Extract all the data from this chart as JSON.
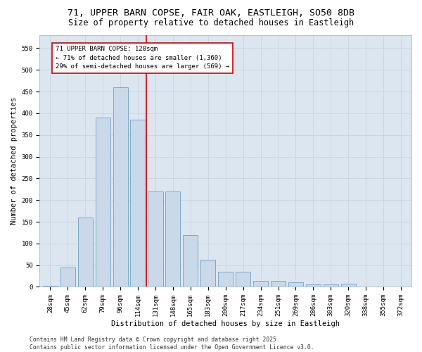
{
  "title_line1": "71, UPPER BARN COPSE, FAIR OAK, EASTLEIGH, SO50 8DB",
  "title_line2": "Size of property relative to detached houses in Eastleigh",
  "xlabel": "Distribution of detached houses by size in Eastleigh",
  "ylabel": "Number of detached properties",
  "categories": [
    "28sqm",
    "45sqm",
    "62sqm",
    "79sqm",
    "96sqm",
    "114sqm",
    "131sqm",
    "148sqm",
    "165sqm",
    "183sqm",
    "200sqm",
    "217sqm",
    "234sqm",
    "251sqm",
    "269sqm",
    "286sqm",
    "303sqm",
    "320sqm",
    "338sqm",
    "355sqm",
    "372sqm"
  ],
  "values": [
    2,
    45,
    160,
    390,
    460,
    385,
    220,
    220,
    120,
    63,
    35,
    35,
    13,
    13,
    10,
    5,
    5,
    8,
    0,
    0,
    0
  ],
  "bar_color": "#c9d9ea",
  "bar_edge_color": "#7aaac8",
  "grid_color": "#c8d4e0",
  "background_color": "#dce6f0",
  "fig_background_color": "#ffffff",
  "annotation_box_color": "#ffffff",
  "annotation_border_color": "#cc0000",
  "vline_color": "#cc0000",
  "vline_x_index": 5.5,
  "annotation_text_line1": "71 UPPER BARN COPSE: 128sqm",
  "annotation_text_line2": "← 71% of detached houses are smaller (1,360)",
  "annotation_text_line3": "29% of semi-detached houses are larger (569) →",
  "ylim": [
    0,
    580
  ],
  "yticks": [
    0,
    50,
    100,
    150,
    200,
    250,
    300,
    350,
    400,
    450,
    500,
    550,
    600
  ],
  "footer_line1": "Contains HM Land Registry data © Crown copyright and database right 2025.",
  "footer_line2": "Contains public sector information licensed under the Open Government Licence v3.0.",
  "title_fontsize": 9.5,
  "subtitle_fontsize": 8.5,
  "annotation_fontsize": 6.5,
  "axis_label_fontsize": 7.5,
  "tick_fontsize": 6.5,
  "footer_fontsize": 5.8
}
